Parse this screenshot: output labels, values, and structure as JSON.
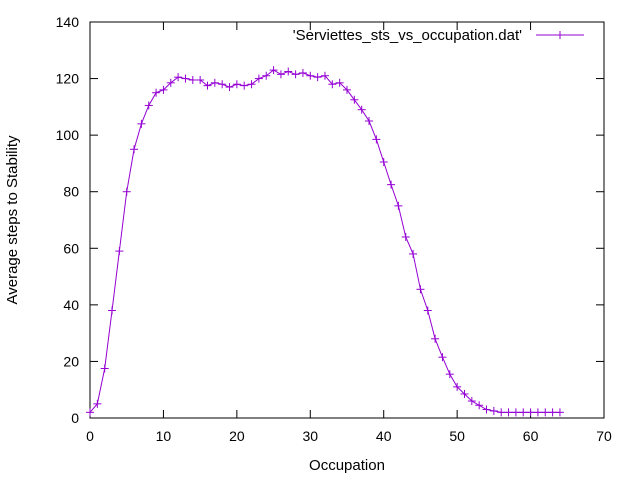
{
  "chart_data": {
    "type": "line",
    "title": "",
    "xlabel": "Occupation",
    "ylabel": "Average steps to Stability",
    "xlim": [
      0,
      70
    ],
    "ylim": [
      0,
      140
    ],
    "xticks": [
      0,
      10,
      20,
      30,
      40,
      50,
      60,
      70
    ],
    "yticks": [
      0,
      20,
      40,
      60,
      80,
      100,
      120,
      140
    ],
    "grid": false,
    "legend_position": "top-right",
    "series": [
      {
        "name": "'Serviettes_sts_vs_occupation.dat'",
        "color": "#9400d3",
        "marker": "plus",
        "x": [
          0,
          1,
          2,
          3,
          4,
          5,
          6,
          7,
          8,
          9,
          10,
          11,
          12,
          13,
          14,
          15,
          16,
          17,
          18,
          19,
          20,
          21,
          22,
          23,
          24,
          25,
          26,
          27,
          28,
          29,
          30,
          31,
          32,
          33,
          34,
          35,
          36,
          37,
          38,
          39,
          40,
          41,
          42,
          43,
          44,
          45,
          46,
          47,
          48,
          49,
          50,
          51,
          52,
          53,
          54,
          55,
          56,
          57,
          58,
          59,
          60,
          61,
          62,
          63,
          64
        ],
        "y": [
          2,
          5,
          17.5,
          38,
          59,
          80,
          95,
          104,
          110.5,
          115,
          116,
          118.5,
          120.5,
          120,
          119.5,
          119.5,
          117.5,
          118.5,
          118,
          117,
          118,
          117.5,
          118,
          120,
          121,
          123,
          121.5,
          122.5,
          121.5,
          122,
          121,
          120.5,
          121,
          118,
          118.5,
          116,
          112.5,
          109,
          105,
          98.5,
          90.5,
          82.5,
          75,
          64,
          58,
          45.5,
          38,
          28,
          21.5,
          15.5,
          11,
          8.5,
          6,
          4.5,
          3,
          2.5,
          2,
          2,
          2,
          2,
          2,
          2,
          2,
          2,
          2
        ]
      }
    ]
  }
}
